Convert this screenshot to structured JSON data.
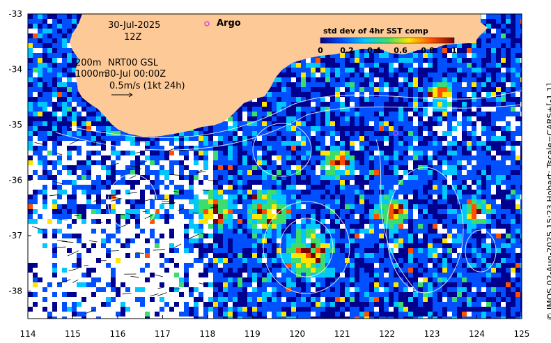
{
  "map": {
    "date": "30-Jul-2025",
    "hour": "12Z",
    "depth_label_1": "200m",
    "depth_label_2": "1000m",
    "product": "NRT00 GSL",
    "vector_time": "30-Jul 00:00Z",
    "vector_scale": "0.5m/s (1kt 24h)",
    "argo_label": "Argo",
    "x_ticks": [
      "114",
      "115",
      "116",
      "117",
      "118",
      "119",
      "120",
      "121",
      "122",
      "123",
      "124",
      "125"
    ],
    "y_ticks": [
      "-33",
      "-34",
      "-35",
      "-36",
      "-37",
      "-38"
    ],
    "colorbar": {
      "title": "std dev of 4hr SST comp",
      "ticks": [
        "0",
        "0.2",
        "0.4",
        "0.6",
        "0.8",
        "1"
      ],
      "stops": [
        "#00008f",
        "#0050ff",
        "#00c8ff",
        "#3cdc6e",
        "#ffe600",
        "#ff5000",
        "#7f0000"
      ]
    },
    "credit": "© IMOS 02-Aug-2025 15:23 Hobart; Tscale=CARS+[-1 1]",
    "land_color": "#fdc996",
    "argo_color": "#e040e0"
  }
}
